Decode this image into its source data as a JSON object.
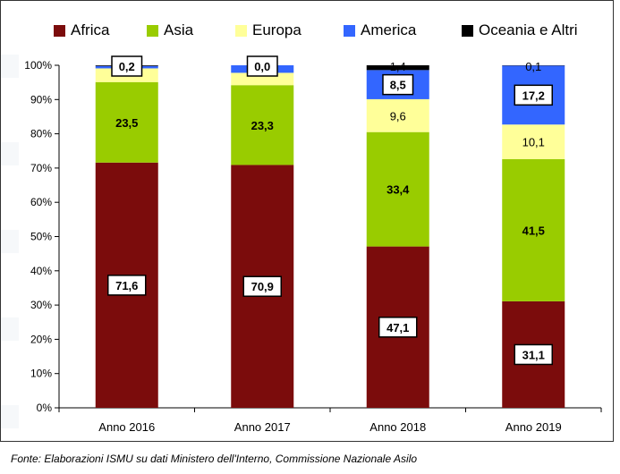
{
  "chart_data": {
    "type": "bar",
    "stacked": true,
    "percent": true,
    "categories": [
      "Anno 2016",
      "Anno 2017",
      "Anno 2018",
      "Anno 2019"
    ],
    "series": [
      {
        "name": "Africa",
        "color": "#7b0c0c",
        "values": [
          71.6,
          70.9,
          47.1,
          31.1
        ],
        "labels": [
          "71,6",
          "70,9",
          "47,1",
          "31,1"
        ],
        "boxed": [
          true,
          true,
          true,
          true
        ]
      },
      {
        "name": "Asia",
        "color": "#99cc00",
        "values": [
          23.5,
          23.3,
          33.4,
          41.5
        ],
        "labels": [
          "23,5",
          "23,3",
          "33,4",
          "41,5"
        ],
        "boxed": [
          false,
          false,
          false,
          false
        ]
      },
      {
        "name": "Europa",
        "color": "#ffff99",
        "values": [
          4.0,
          3.6,
          9.6,
          10.1
        ],
        "labels": [
          "",
          "",
          "9,6",
          "10,1"
        ],
        "boxed": [
          false,
          false,
          false,
          false
        ]
      },
      {
        "name": "America",
        "color": "#3366ff",
        "values": [
          0.7,
          2.2,
          8.5,
          17.2
        ],
        "labels": [
          "",
          "",
          "8,5",
          "17,2"
        ],
        "boxed": [
          false,
          false,
          true,
          true
        ]
      },
      {
        "name": "Oceania e Altri",
        "color": "#000000",
        "values": [
          0.2,
          0.0,
          1.4,
          0.1
        ],
        "labels": [
          "0,2",
          "0,0",
          "1,4",
          "0,1"
        ],
        "boxed": [
          true,
          true,
          false,
          false
        ]
      }
    ],
    "yticks": [
      "0%",
      "10%",
      "20%",
      "30%",
      "40%",
      "50%",
      "60%",
      "70%",
      "80%",
      "90%",
      "100%"
    ],
    "ylim": [
      0,
      100
    ],
    "grid": false,
    "legend_position": "top"
  },
  "source_text": "Fonte: Elaborazioni ISMU su dati Ministero dell'Interno, Commissione Nazionale Asilo"
}
